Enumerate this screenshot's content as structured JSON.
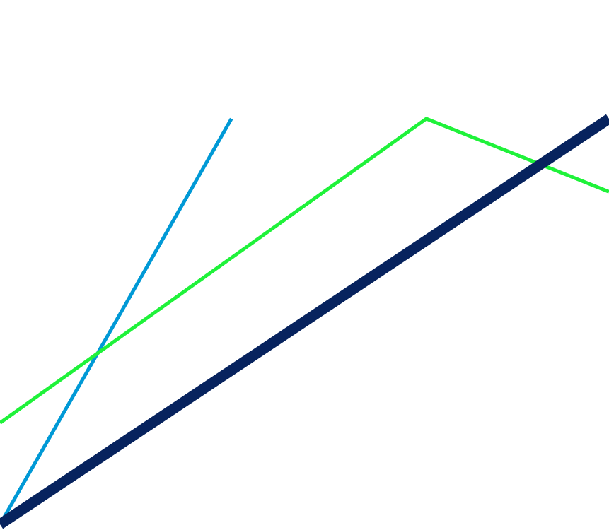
{
  "chart_data": {
    "type": "line",
    "title": "",
    "xlabel": "",
    "ylabel": "",
    "grid": false,
    "legend": "none",
    "xlim": [
      0,
      1
    ],
    "ylim": [
      0,
      1
    ],
    "series": [
      {
        "color": "#0099d6",
        "stroke": "thin",
        "points": [
          [
            0.0,
            0.0
          ],
          [
            0.38,
            1.0
          ]
        ]
      },
      {
        "color": "#1ff23a",
        "stroke": "thin",
        "points": [
          [
            0.0,
            0.25
          ],
          [
            0.7,
            1.0
          ],
          [
            1.0,
            0.82
          ]
        ]
      },
      {
        "color": "#07235e",
        "stroke": "thick",
        "points": [
          [
            0.0,
            0.0
          ],
          [
            1.0,
            1.0
          ]
        ]
      }
    ]
  }
}
